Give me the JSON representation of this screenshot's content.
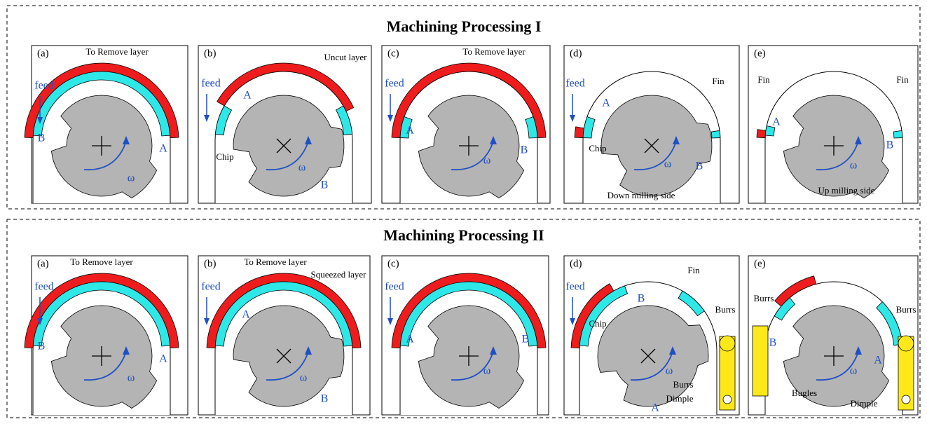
{
  "sections": [
    {
      "title": "Machining Processing I",
      "panels": [
        {
          "label": "(a)",
          "texts": [
            "To Remove layer",
            "feed",
            "B",
            "A",
            "ω"
          ]
        },
        {
          "label": "(b)",
          "texts": [
            "Uncut layer",
            "feed",
            "A",
            "Chip",
            "B",
            "ω"
          ]
        },
        {
          "label": "(c)",
          "texts": [
            "To Remove layer",
            "feed",
            "A",
            "B",
            "ω"
          ]
        },
        {
          "label": "(d)",
          "texts": [
            "feed",
            "A",
            "Fin",
            "Chip",
            "B",
            "ω",
            "Down milling side"
          ]
        },
        {
          "label": "(e)",
          "texts": [
            "Fin",
            "Fin",
            "A",
            "B",
            "ω",
            "Up milling side"
          ]
        }
      ]
    },
    {
      "title": "Machining Processing II",
      "panels": [
        {
          "label": "(a)",
          "texts": [
            "To Remove layer",
            "feed",
            "B",
            "A",
            "ω"
          ]
        },
        {
          "label": "(b)",
          "texts": [
            "To Remove layer",
            "Squeezed  layer",
            "feed",
            "A",
            "B",
            "ω"
          ]
        },
        {
          "label": "(c)",
          "texts": [
            "feed",
            "A",
            "B",
            "ω"
          ]
        },
        {
          "label": "(d)",
          "texts": [
            "feed",
            "Fin",
            "B",
            "Chip",
            "Burrs",
            "Burrs",
            "Dimple",
            "ω",
            "A"
          ]
        },
        {
          "label": "(e)",
          "texts": [
            "Burrs",
            "Burrs",
            "B",
            "A",
            "Bugles",
            "Dimple",
            "ω"
          ]
        }
      ]
    }
  ]
}
